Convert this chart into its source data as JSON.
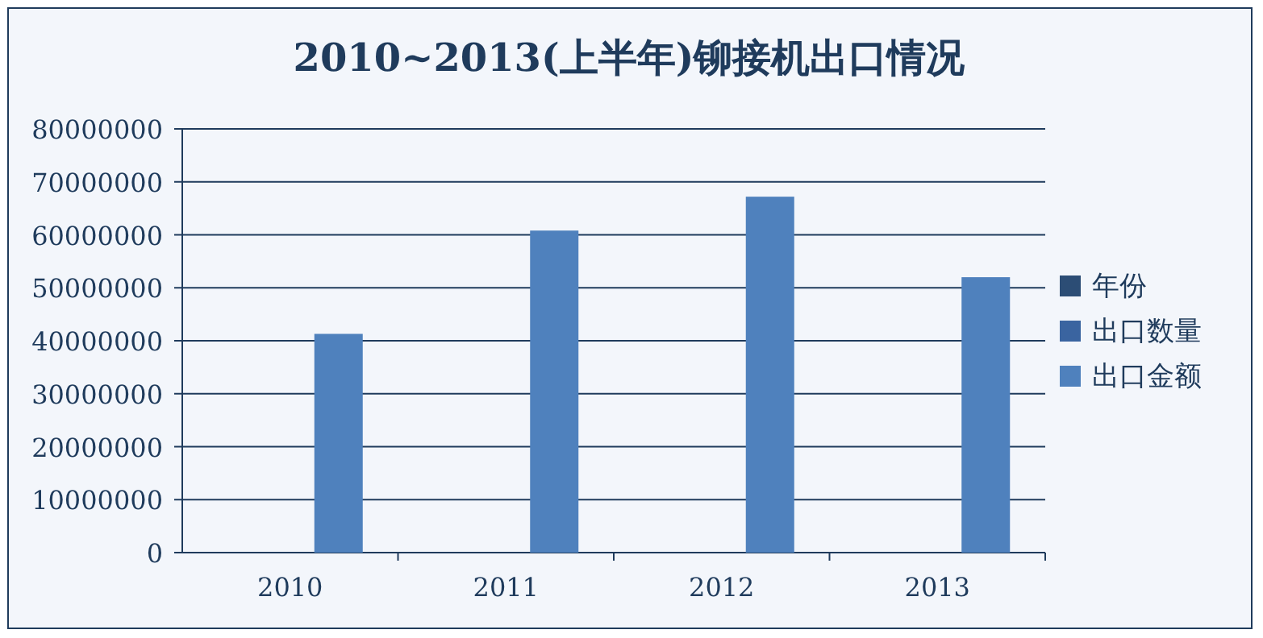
{
  "chart_data": {
    "type": "bar",
    "title": "2010~2013(上半年)铆接机出口情况",
    "categories": [
      "2010",
      "2011",
      "2012",
      "2013"
    ],
    "series": [
      {
        "name": "年份",
        "color": "#2c4d75",
        "values": [
          null,
          null,
          null,
          null
        ]
      },
      {
        "name": "出口数量",
        "color": "#3a64a0",
        "values": [
          null,
          null,
          null,
          null
        ]
      },
      {
        "name": "出口金额",
        "color": "#4f81bd",
        "values": [
          41300000,
          60800000,
          67200000,
          52000000
        ]
      }
    ],
    "ylim": [
      0,
      80000000
    ],
    "yticks": [
      0,
      10000000,
      20000000,
      30000000,
      40000000,
      50000000,
      60000000,
      70000000,
      80000000
    ],
    "grid": "y",
    "legend": "right"
  }
}
